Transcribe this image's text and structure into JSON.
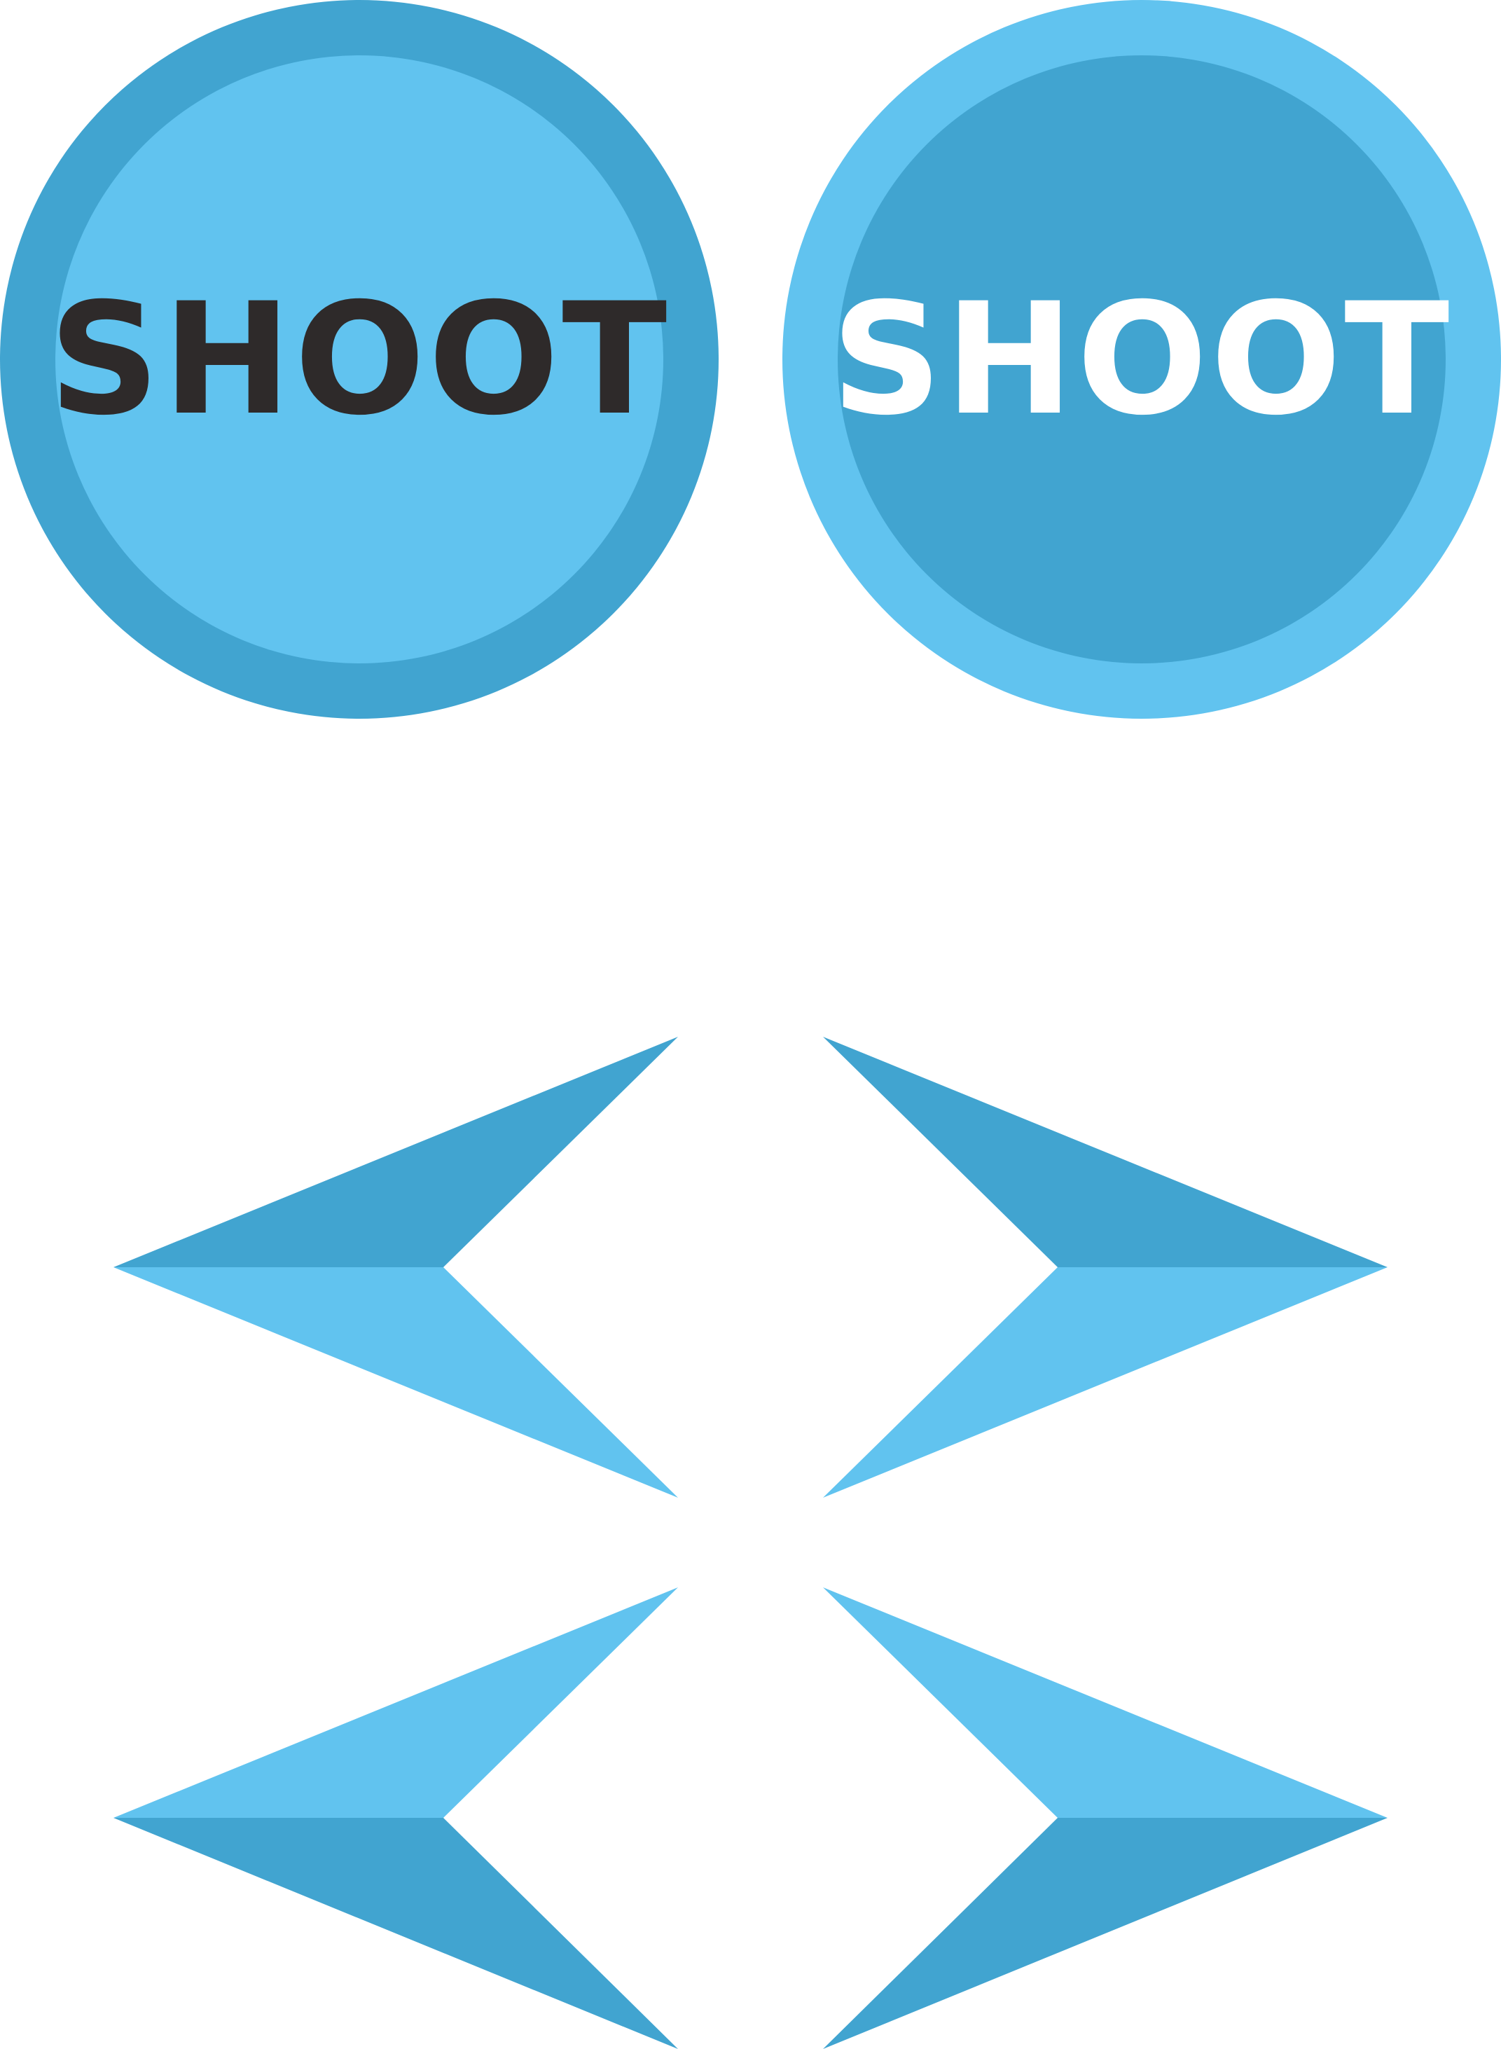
{
  "colors": {
    "dark_blue": "#41a4d0",
    "light_blue": "#61c3ef",
    "text_dark": "#2e2a2a",
    "text_light": "#ffffff",
    "background": "#ffffff"
  },
  "buttons": {
    "shoot_normal": {
      "label": "SHOOT",
      "state": "normal",
      "ring_color": "#41a4d0",
      "fill_color": "#61c3ef",
      "text_color": "#2e2a2a"
    },
    "shoot_pressed": {
      "label": "SHOOT",
      "state": "pressed",
      "ring_color": "#61c3ef",
      "fill_color": "#41a4d0",
      "text_color": "#ffffff"
    }
  },
  "arrows": [
    {
      "name": "left-arrow-normal",
      "direction": "left",
      "top_color": "#41a4d0",
      "bottom_color": "#61c3ef"
    },
    {
      "name": "right-arrow-normal",
      "direction": "right",
      "top_color": "#41a4d0",
      "bottom_color": "#61c3ef"
    },
    {
      "name": "left-arrow-pressed",
      "direction": "left",
      "top_color": "#61c3ef",
      "bottom_color": "#41a4d0"
    },
    {
      "name": "right-arrow-pressed",
      "direction": "right",
      "top_color": "#61c3ef",
      "bottom_color": "#41a4d0"
    }
  ]
}
